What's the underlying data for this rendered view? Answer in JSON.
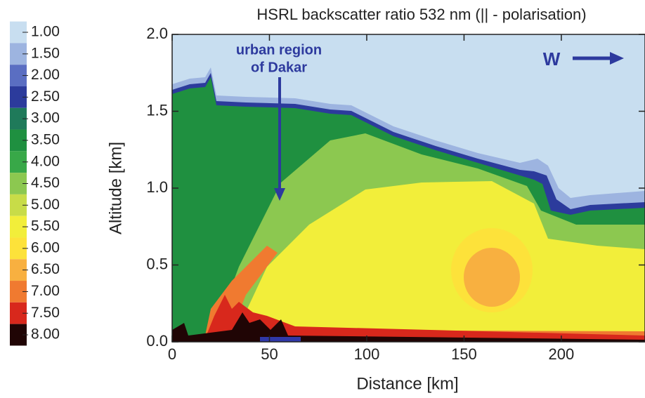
{
  "chart_data": {
    "type": "contour",
    "title": "HSRL backscatter ratio 532 nm (|| - polarisation)",
    "x_label": "Distance [km]",
    "y_label": "Altitude [km]",
    "xlim": [
      0,
      243
    ],
    "ylim": [
      0,
      2
    ],
    "xticks": [
      0,
      50,
      100,
      150,
      200
    ],
    "yticks": [
      {
        "value": 0,
        "label": "0.0"
      },
      {
        "value": 0.5,
        "label": "0.5"
      },
      {
        "value": 1,
        "label": "1.0"
      },
      {
        "value": 1.5,
        "label": "1.5"
      },
      {
        "value": 2,
        "label": "2.0"
      }
    ],
    "colorbar": {
      "levels": [
        {
          "value": 1,
          "label": "1.00"
        },
        {
          "value": 1.5,
          "label": "1.50"
        },
        {
          "value": 2,
          "label": "2.00"
        },
        {
          "value": 2.5,
          "label": "2.50"
        },
        {
          "value": 3,
          "label": "3.00"
        },
        {
          "value": 3.5,
          "label": "3.50"
        },
        {
          "value": 4,
          "label": "4.00"
        },
        {
          "value": 4.5,
          "label": "4.50"
        },
        {
          "value": 5,
          "label": "5.00"
        },
        {
          "value": 5.5,
          "label": "5.50"
        },
        {
          "value": 6,
          "label": "6.00"
        },
        {
          "value": 6.5,
          "label": "6.50"
        },
        {
          "value": 7,
          "label": "7.00"
        },
        {
          "value": 7.5,
          "label": "7.50"
        },
        {
          "value": 8,
          "label": "8.00"
        }
      ],
      "colors": [
        "#c8def0",
        "#9db4e0",
        "#5a6ec2",
        "#2c3b9c",
        "#1f7a5a",
        "#1f9040",
        "#38a848",
        "#8cc850",
        "#c8dc48",
        "#f2ee3a",
        "#fde23a",
        "#f8b040",
        "#f07a30",
        "#d8281c",
        "#200505"
      ]
    },
    "annotations": [
      "urban region",
      "of Dakar",
      "W"
    ]
  }
}
